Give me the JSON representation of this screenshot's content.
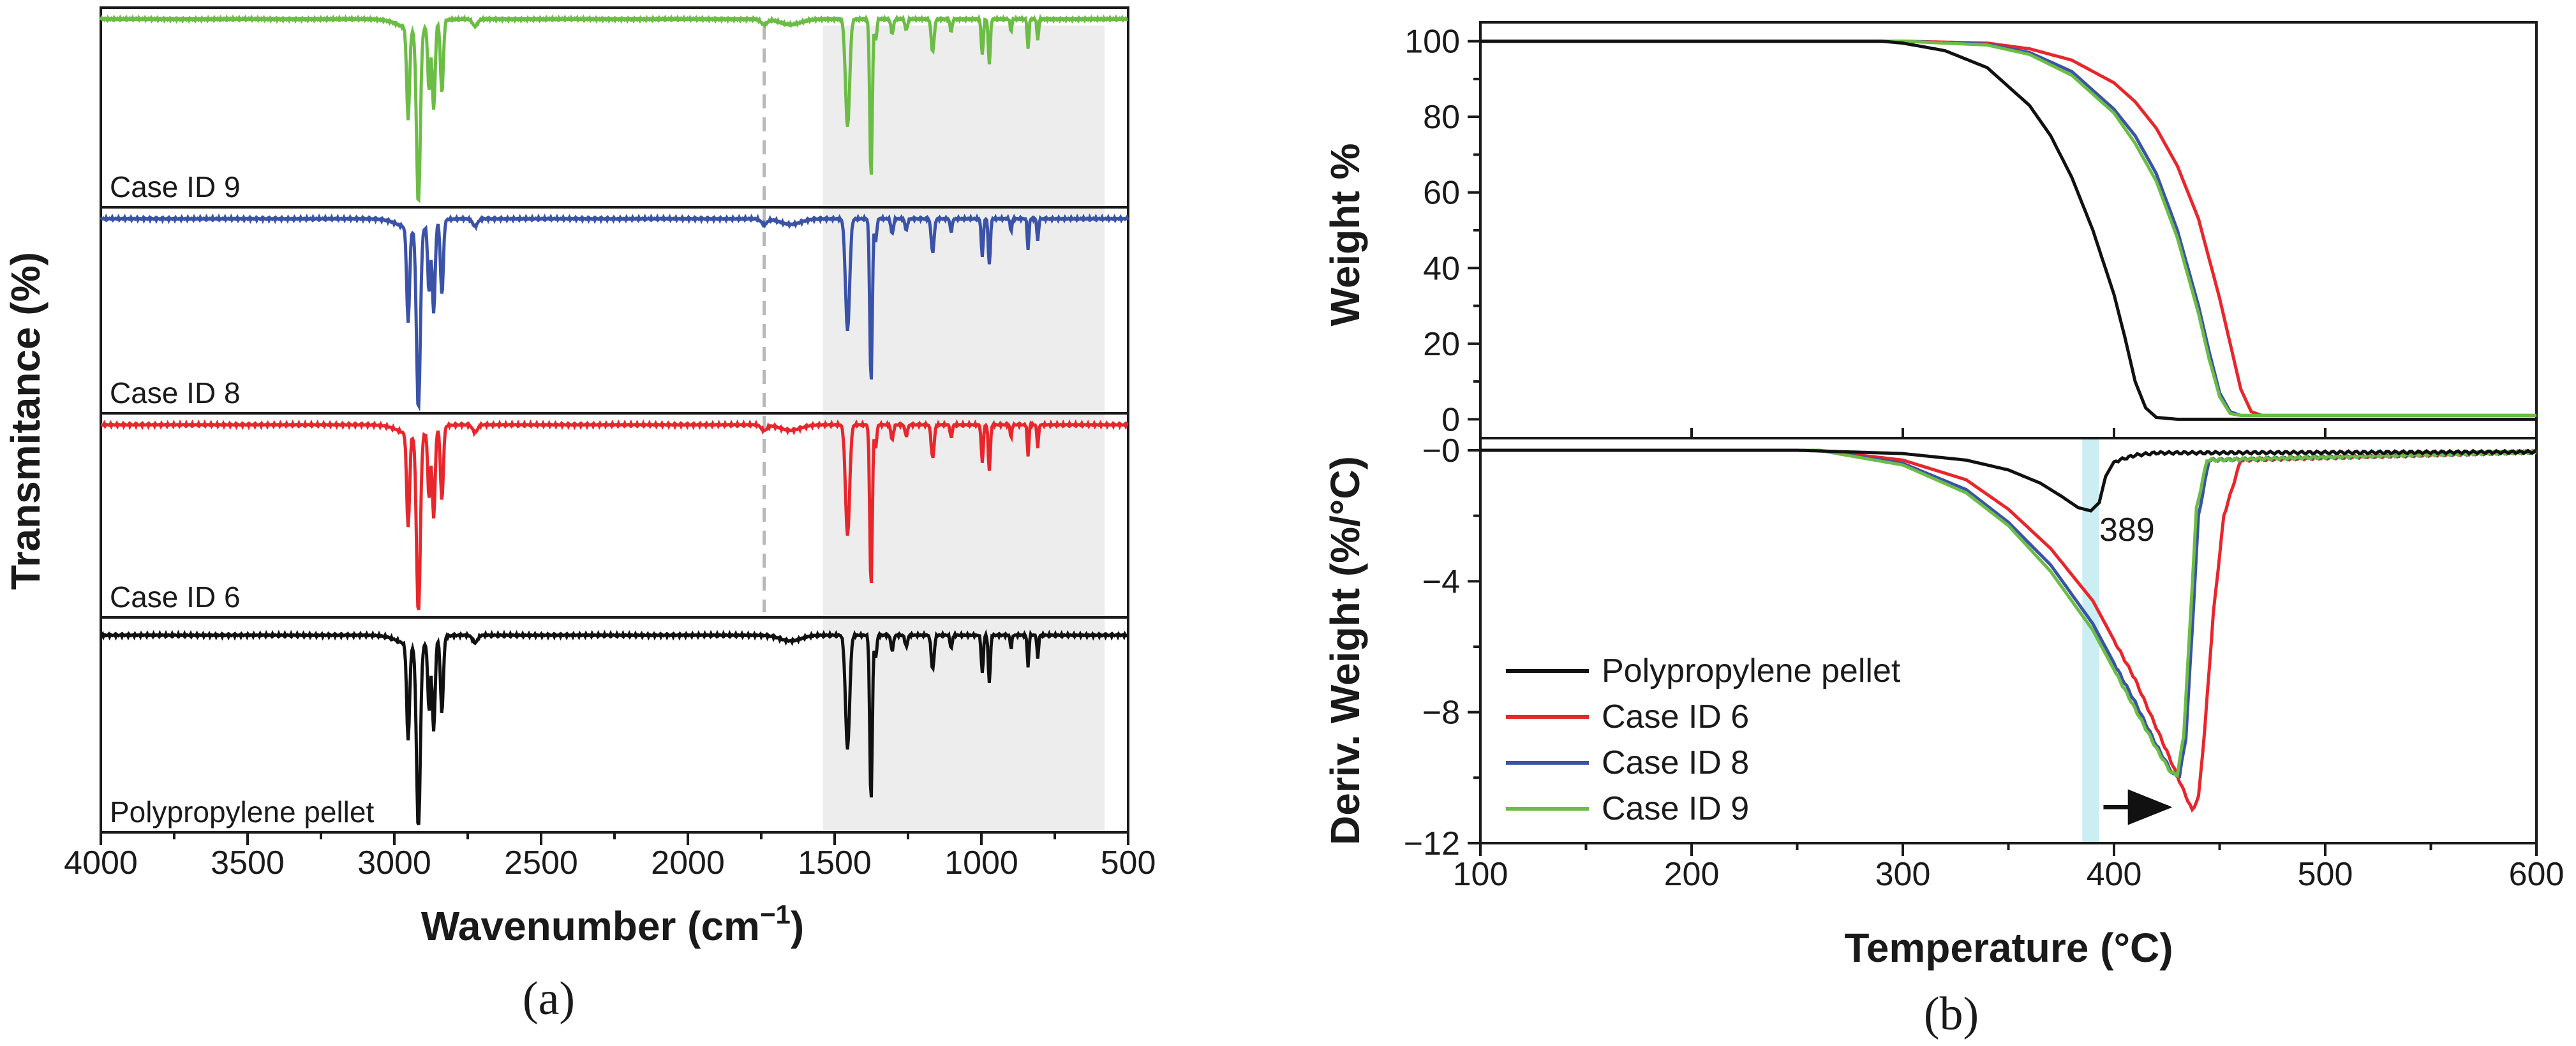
{
  "captions": {
    "a": "(a)",
    "b": "(b)"
  },
  "colors": {
    "pp": "#111111",
    "case6": "#e8262b",
    "case8": "#3a52a8",
    "case9": "#6cbd45",
    "shade": "#ededed",
    "dash": "#b8b8b8",
    "band": "#cbeef2"
  },
  "chart_data": [
    {
      "type": "line",
      "panel": "a",
      "title": "",
      "xlabel": "Wavenumber (cm⁻¹)",
      "ylabel": "Transmitance (%)",
      "xlim": [
        4000,
        500
      ],
      "x_reversed": true,
      "xticks": [
        "4000",
        "3500",
        "3000",
        "2500",
        "2000",
        "1500",
        "1000",
        "500"
      ],
      "shaded_region": [
        1540,
        580
      ],
      "dashed_line_at": 1740,
      "series": [
        {
          "name": "Case ID 9",
          "color": "#6cbd45"
        },
        {
          "name": "Case ID 8",
          "color": "#3a52a8"
        },
        {
          "name": "Case ID 6",
          "color": "#e8262b"
        },
        {
          "name": "Polypropylene pellet",
          "color": "#111111"
        }
      ],
      "peaks_cm1": [
        2950,
        2917,
        2868,
        2838,
        1456,
        1376,
        1166,
        997,
        973,
        841,
        808
      ]
    },
    {
      "type": "line",
      "panel": "b-top",
      "title": "",
      "xlabel": "Temperature (°C)",
      "ylabel": "Weight %",
      "xlim": [
        100,
        600
      ],
      "ylim": [
        -5,
        105
      ],
      "xticks": [
        "100",
        "200",
        "300",
        "400",
        "500",
        "600"
      ],
      "yticks": [
        "0",
        "20",
        "40",
        "60",
        "80",
        "100"
      ],
      "series": [
        {
          "name": "Polypropylene pellet",
          "color": "#111111",
          "x": [
            100,
            290,
            300,
            320,
            340,
            360,
            370,
            380,
            390,
            400,
            405,
            410,
            415,
            420,
            430,
            600
          ],
          "y": [
            100,
            100,
            99.5,
            97.5,
            93,
            83,
            75,
            64,
            50,
            33,
            22,
            10,
            3,
            0.5,
            0,
            0
          ]
        },
        {
          "name": "Case ID 6",
          "color": "#e8262b",
          "x": [
            100,
            300,
            340,
            360,
            380,
            400,
            410,
            420,
            430,
            440,
            450,
            455,
            460,
            465,
            470,
            600
          ],
          "y": [
            100,
            100,
            99.5,
            98,
            95,
            89,
            84,
            77,
            67,
            53,
            32,
            20,
            8,
            2,
            1,
            1
          ]
        },
        {
          "name": "Case ID 8",
          "color": "#3a52a8",
          "x": [
            100,
            300,
            340,
            360,
            380,
            400,
            410,
            420,
            430,
            440,
            445,
            450,
            455,
            460,
            600
          ],
          "y": [
            100,
            100,
            99.2,
            97,
            92,
            82,
            75,
            65,
            50,
            30,
            18,
            7,
            2,
            1,
            1
          ]
        },
        {
          "name": "Case ID 9",
          "color": "#6cbd45",
          "x": [
            100,
            300,
            340,
            360,
            380,
            400,
            410,
            420,
            430,
            440,
            445,
            450,
            455,
            460,
            600
          ],
          "y": [
            100,
            100,
            99,
            96.5,
            91,
            81,
            73,
            63,
            48,
            28,
            16,
            6,
            1.5,
            1,
            1
          ]
        }
      ]
    },
    {
      "type": "line",
      "panel": "b-bottom",
      "title": "",
      "xlabel": "Temperature (°C)",
      "ylabel": "Deriv. Weight (%/°C)",
      "xlim": [
        100,
        600
      ],
      "ylim": [
        -12,
        0
      ],
      "xticks": [
        "100",
        "200",
        "300",
        "400",
        "500",
        "600"
      ],
      "yticks": [
        "−0",
        "−4",
        "−8",
        "−12"
      ],
      "annotation": "389",
      "highlight_band": [
        385,
        393
      ],
      "arrow": {
        "from": 395,
        "to": 428,
        "y": -10.9
      },
      "series": [
        {
          "name": "Polypropylene pellet",
          "color": "#111111",
          "x": [
            100,
            250,
            300,
            330,
            350,
            365,
            375,
            383,
            389,
            393,
            396,
            400,
            410,
            420,
            600
          ],
          "y": [
            0,
            0,
            -0.1,
            -0.3,
            -0.6,
            -1.0,
            -1.4,
            -1.75,
            -1.85,
            -1.6,
            -0.8,
            -0.35,
            -0.15,
            -0.08,
            -0.05
          ]
        },
        {
          "name": "Case ID 6",
          "color": "#e8262b",
          "x": [
            100,
            260,
            300,
            330,
            350,
            370,
            390,
            410,
            425,
            433,
            437,
            440,
            443,
            447,
            452,
            460,
            600
          ],
          "y": [
            0,
            0,
            -0.3,
            -0.9,
            -1.8,
            -3.0,
            -4.6,
            -7.0,
            -9.2,
            -10.4,
            -11.0,
            -10.6,
            -8.5,
            -5.0,
            -2.0,
            -0.3,
            -0.05
          ]
        },
        {
          "name": "Case ID 8",
          "color": "#3a52a8",
          "x": [
            100,
            260,
            300,
            330,
            350,
            370,
            390,
            410,
            420,
            428,
            431,
            434,
            437,
            440,
            445,
            600
          ],
          "y": [
            0,
            0,
            -0.4,
            -1.2,
            -2.2,
            -3.5,
            -5.3,
            -7.7,
            -9.0,
            -9.9,
            -9.95,
            -8.8,
            -5.5,
            -2.0,
            -0.3,
            -0.05
          ]
        },
        {
          "name": "Case ID 9",
          "color": "#6cbd45",
          "x": [
            100,
            260,
            300,
            330,
            350,
            370,
            390,
            410,
            420,
            427,
            430,
            433,
            436,
            439,
            444,
            600
          ],
          "y": [
            0,
            0,
            -0.45,
            -1.3,
            -2.3,
            -3.7,
            -5.5,
            -7.9,
            -9.1,
            -9.85,
            -9.9,
            -8.7,
            -5.3,
            -1.8,
            -0.3,
            -0.05
          ]
        }
      ],
      "legend": {
        "placement": "bottom-left",
        "entries": [
          "Polypropylene pellet",
          "Case ID 6",
          "Case ID 8",
          "Case ID 9"
        ]
      }
    }
  ]
}
